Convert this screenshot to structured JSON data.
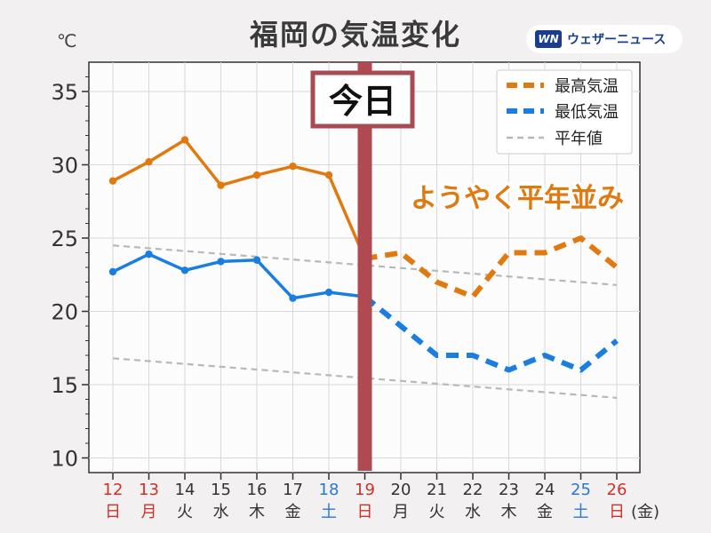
{
  "header": {
    "title": "福岡の気温変化",
    "unit": "℃",
    "logo_mark": "WN",
    "logo_text": "ウェザーニュース"
  },
  "chart_data": {
    "type": "line",
    "title": "福岡の気温変化",
    "ylabel": "℃",
    "ylim": [
      9,
      37
    ],
    "yticks": [
      10,
      15,
      20,
      25,
      30,
      35
    ],
    "grid": true,
    "legend_position": "top-right",
    "today_label": "今日",
    "today_date": 19,
    "annotation": "ようやく平年並み",
    "weekday_suffix": "(金)",
    "days": [
      {
        "num": "12",
        "dow": "日",
        "color": "#d0302a"
      },
      {
        "num": "13",
        "dow": "月",
        "color": "#d0302a"
      },
      {
        "num": "14",
        "dow": "火",
        "color": "#333333"
      },
      {
        "num": "15",
        "dow": "水",
        "color": "#333333"
      },
      {
        "num": "16",
        "dow": "木",
        "color": "#333333"
      },
      {
        "num": "17",
        "dow": "金",
        "color": "#333333"
      },
      {
        "num": "18",
        "dow": "土",
        "color": "#2a78d0"
      },
      {
        "num": "19",
        "dow": "日",
        "color": "#d0302a"
      },
      {
        "num": "20",
        "dow": "月",
        "color": "#333333"
      },
      {
        "num": "21",
        "dow": "火",
        "color": "#333333"
      },
      {
        "num": "22",
        "dow": "水",
        "color": "#333333"
      },
      {
        "num": "23",
        "dow": "木",
        "color": "#333333"
      },
      {
        "num": "24",
        "dow": "金",
        "color": "#333333"
      },
      {
        "num": "25",
        "dow": "土",
        "color": "#2a78d0"
      },
      {
        "num": "26",
        "dow": "日",
        "color": "#d0302a"
      }
    ],
    "series": [
      {
        "name": "最高気温",
        "color": "#e07a10",
        "observed_x": [
          12,
          13,
          14,
          15,
          16,
          17,
          18,
          19
        ],
        "observed_values": [
          28.9,
          30.2,
          31.7,
          28.6,
          29.3,
          29.9,
          29.3,
          23.6
        ],
        "forecast_x": [
          19,
          20,
          21,
          22,
          23,
          24,
          25,
          26
        ],
        "forecast_values": [
          23.6,
          24,
          22,
          21,
          24,
          24,
          25,
          23
        ]
      },
      {
        "name": "最低気温",
        "color": "#1a7ee0",
        "observed_x": [
          12,
          13,
          14,
          15,
          16,
          17,
          18,
          19
        ],
        "observed_values": [
          22.7,
          23.9,
          22.8,
          23.4,
          23.5,
          20.9,
          21.3,
          21
        ],
        "forecast_x": [
          19,
          20,
          21,
          22,
          23,
          24,
          25,
          26
        ],
        "forecast_values": [
          21,
          19,
          17,
          17,
          16,
          17,
          16,
          18
        ]
      },
      {
        "name": "平年値",
        "color": "#b8b8b8",
        "high_x": [
          12,
          26
        ],
        "high_values": [
          24.5,
          21.8
        ],
        "low_x": [
          12,
          26
        ],
        "low_values": [
          16.8,
          14.1
        ]
      }
    ]
  }
}
